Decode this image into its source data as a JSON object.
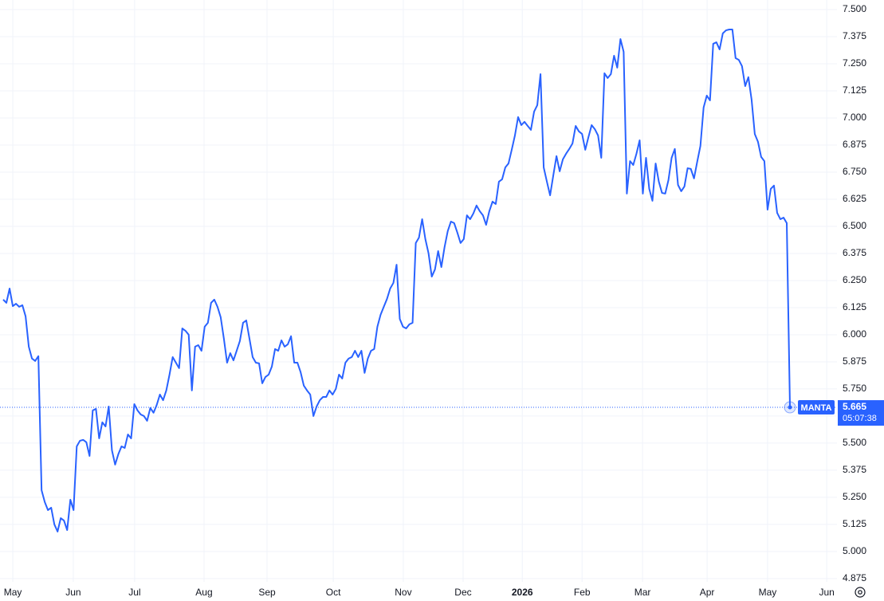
{
  "chart_data": {
    "type": "line",
    "series": [
      {
        "name": "MANTA",
        "color": "#2962ff",
        "values": [
          6.162,
          6.147,
          6.213,
          6.132,
          6.143,
          6.129,
          6.136,
          6.085,
          5.945,
          5.89,
          5.879,
          5.901,
          5.283,
          5.228,
          5.191,
          5.202,
          5.125,
          5.092,
          5.154,
          5.143,
          5.099,
          5.239,
          5.191,
          5.485,
          5.511,
          5.515,
          5.504,
          5.441,
          5.651,
          5.658,
          5.522,
          5.596,
          5.577,
          5.669,
          5.467,
          5.401,
          5.449,
          5.485,
          5.478,
          5.54,
          5.522,
          5.68,
          5.651,
          5.632,
          5.625,
          5.603,
          5.662,
          5.64,
          5.676,
          5.724,
          5.698,
          5.743,
          5.816,
          5.897,
          5.871,
          5.846,
          6.029,
          6.018,
          6.0,
          5.743,
          5.945,
          5.952,
          5.926,
          6.037,
          6.055,
          6.147,
          6.162,
          6.129,
          6.081,
          5.982,
          5.871,
          5.915,
          5.882,
          5.926,
          5.971,
          6.055,
          6.066,
          5.982,
          5.897,
          5.871,
          5.868,
          5.776,
          5.805,
          5.816,
          5.853,
          5.934,
          5.926,
          5.974,
          5.945,
          5.956,
          5.993,
          5.871,
          5.871,
          5.827,
          5.765,
          5.743,
          5.724,
          5.625,
          5.669,
          5.698,
          5.713,
          5.713,
          5.743,
          5.724,
          5.75,
          5.816,
          5.798,
          5.871,
          5.89,
          5.897,
          5.926,
          5.897,
          5.926,
          5.824,
          5.89,
          5.926,
          5.934,
          6.037,
          6.092,
          6.129,
          6.165,
          6.213,
          6.239,
          6.323,
          6.073,
          6.037,
          6.029,
          6.048,
          6.055,
          6.423,
          6.448,
          6.533,
          6.441,
          6.375,
          6.268,
          6.301,
          6.386,
          6.312,
          6.404,
          6.478,
          6.522,
          6.515,
          6.471,
          6.423,
          6.441,
          6.551,
          6.533,
          6.559,
          6.596,
          6.57,
          6.551,
          6.507,
          6.57,
          6.614,
          6.603,
          6.706,
          6.717,
          6.772,
          6.79,
          6.853,
          6.919,
          7.004,
          6.967,
          6.982,
          6.963,
          6.945,
          7.029,
          7.059,
          7.202,
          6.772,
          6.706,
          6.643,
          6.735,
          6.824,
          6.754,
          6.809,
          6.835,
          6.857,
          6.882,
          6.963,
          6.938,
          6.926,
          6.853,
          6.912,
          6.967,
          6.948,
          6.919,
          6.816,
          7.206,
          7.184,
          7.202,
          7.287,
          7.232,
          7.364,
          7.305,
          6.651,
          6.801,
          6.783,
          6.835,
          6.897,
          6.651,
          6.816,
          6.673,
          6.618,
          6.79,
          6.706,
          6.654,
          6.651,
          6.713,
          6.816,
          6.857,
          6.691,
          6.662,
          6.684,
          6.768,
          6.765,
          6.721,
          6.798,
          6.871,
          7.048,
          7.103,
          7.081,
          7.342,
          7.349,
          7.316,
          7.39,
          7.404,
          7.408,
          7.408,
          7.276,
          7.268,
          7.239,
          7.147,
          7.188,
          7.085,
          6.926,
          6.89,
          6.82,
          6.801,
          6.577,
          6.673,
          6.688,
          6.562,
          6.533,
          6.54,
          6.515,
          5.665
        ]
      }
    ],
    "countdown": "05:07:38",
    "xlim": [
      -1.0,
      260.7
    ],
    "xticks": [
      {
        "value": 3.0,
        "label": "May"
      },
      {
        "value": 21.9,
        "label": "Jun"
      },
      {
        "value": 41.1,
        "label": "Jul"
      },
      {
        "value": 62.8,
        "label": "Aug"
      },
      {
        "value": 82.5,
        "label": "Sep"
      },
      {
        "value": 103.2,
        "label": "Oct"
      },
      {
        "value": 125.1,
        "label": "Nov"
      },
      {
        "value": 143.8,
        "label": "Dec"
      },
      {
        "value": 162.3,
        "label": "2026"
      },
      {
        "value": 181.0,
        "label": "Feb"
      },
      {
        "value": 199.9,
        "label": "Mar"
      },
      {
        "value": 220.1,
        "label": "Apr"
      },
      {
        "value": 239.0,
        "label": "May"
      },
      {
        "value": 257.5,
        "label": "Jun"
      }
    ],
    "ylim": [
      4.86,
      7.544
    ],
    "yticks": [
      {
        "value": 4.875,
        "label": "4.875"
      },
      {
        "value": 5.0,
        "label": "5.000"
      },
      {
        "value": 5.125,
        "label": "5.125"
      },
      {
        "value": 5.25,
        "label": "5.250"
      },
      {
        "value": 5.375,
        "label": "5.375"
      },
      {
        "value": 5.5,
        "label": "5.500"
      },
      {
        "value": 5.625,
        "label": "5.625"
      },
      {
        "value": 5.75,
        "label": "5.750"
      },
      {
        "value": 5.875,
        "label": "5.875"
      },
      {
        "value": 6.0,
        "label": "6.000"
      },
      {
        "value": 6.125,
        "label": "6.125"
      },
      {
        "value": 6.25,
        "label": "6.250"
      },
      {
        "value": 6.375,
        "label": "6.375"
      },
      {
        "value": 6.5,
        "label": "6.500"
      },
      {
        "value": 6.625,
        "label": "6.625"
      },
      {
        "value": 6.75,
        "label": "6.750"
      },
      {
        "value": 6.875,
        "label": "6.875"
      },
      {
        "value": 7.0,
        "label": "7.000"
      },
      {
        "value": 7.125,
        "label": "7.125"
      },
      {
        "value": 7.25,
        "label": "7.250"
      },
      {
        "value": 7.375,
        "label": "7.375"
      },
      {
        "value": 7.5,
        "label": "7.500"
      }
    ],
    "grid": true
  }
}
